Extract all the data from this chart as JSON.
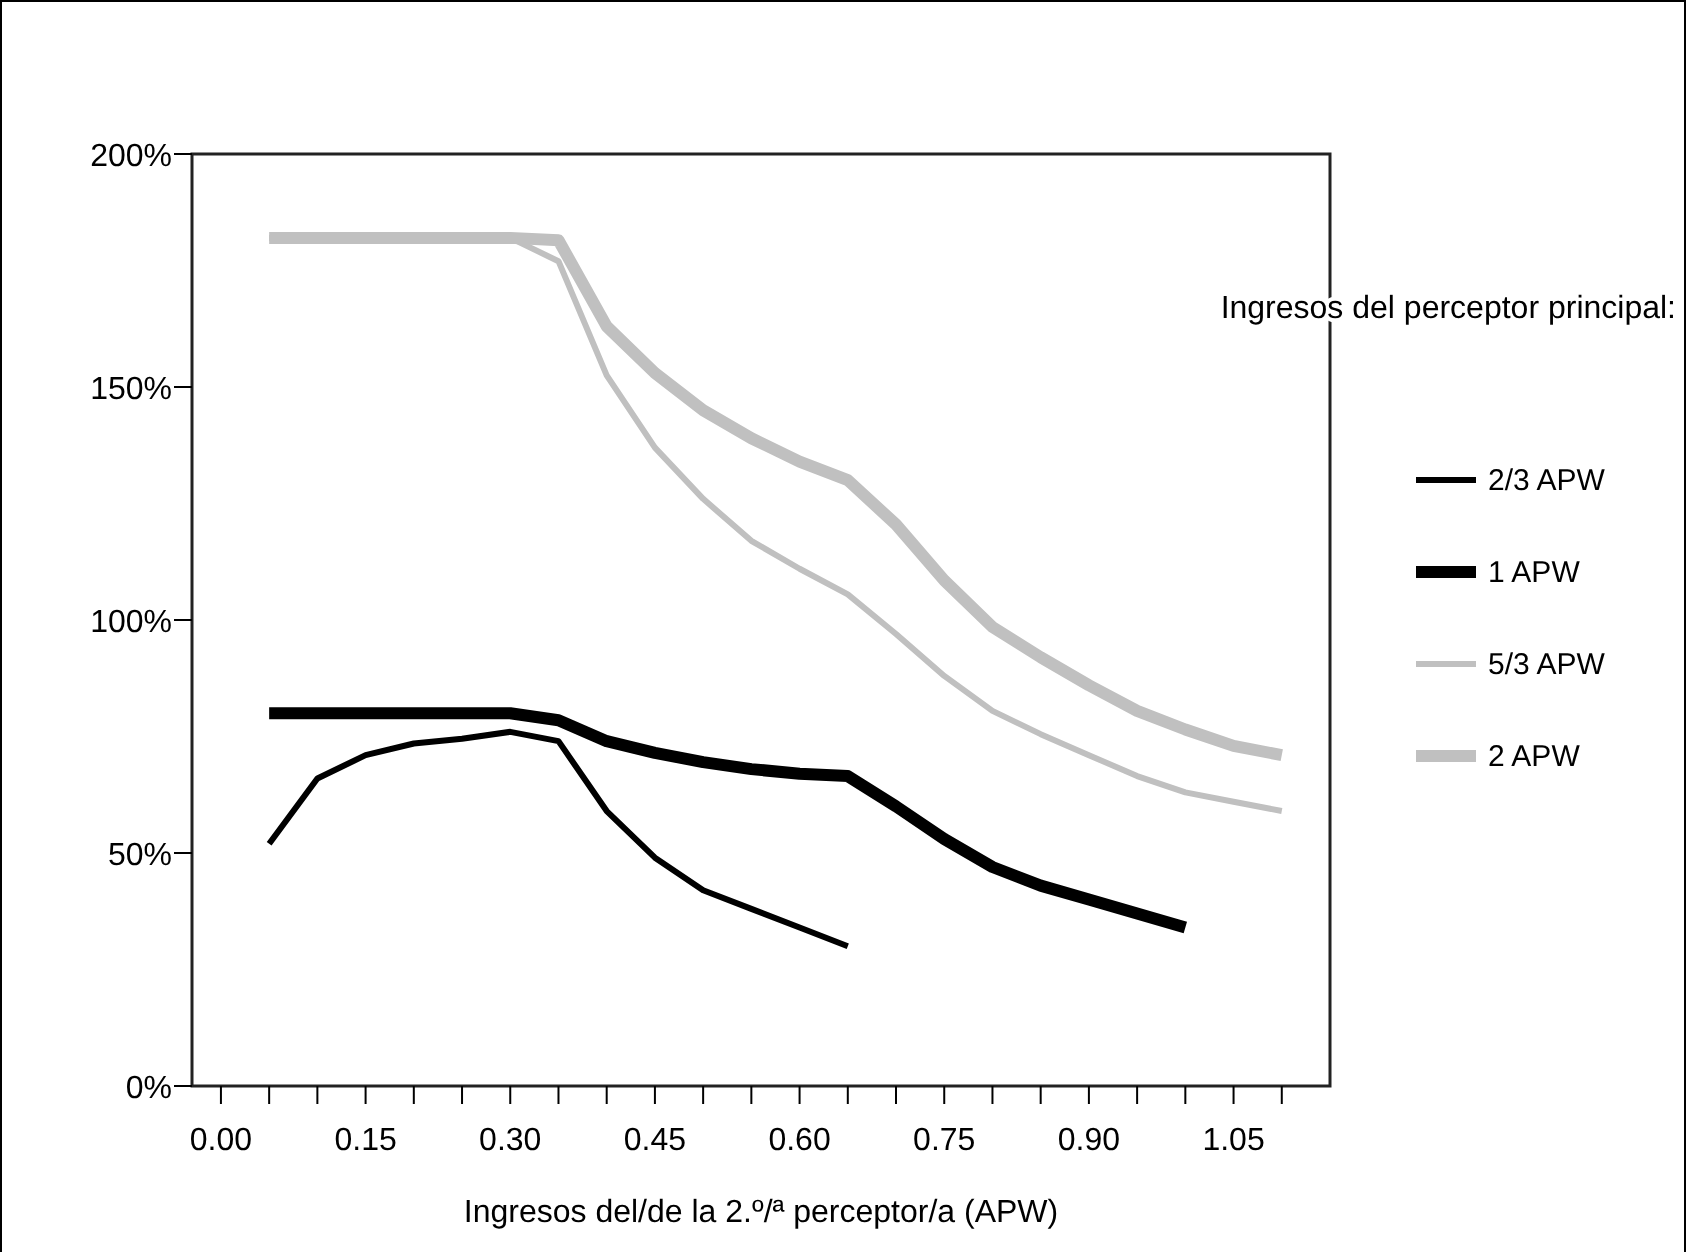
{
  "chart_data": {
    "type": "line",
    "xlabel": "Ingresos del/de la 2.º/ª perceptor/a (APW)",
    "legend_title": "Ingresos del perceptor principal:",
    "x": [
      0.05,
      0.1,
      0.15,
      0.2,
      0.25,
      0.3,
      0.35,
      0.4,
      0.45,
      0.5,
      0.55,
      0.6,
      0.65,
      0.7,
      0.75,
      0.8,
      0.85,
      0.9,
      0.95,
      1.0,
      1.05,
      1.1
    ],
    "series": [
      {
        "name": "2/3 APW",
        "color": "#000000",
        "values": [
          52,
          66,
          71,
          73.5,
          74.5,
          76,
          74,
          59,
          49,
          42,
          38,
          34,
          30,
          null,
          null,
          null,
          null,
          null,
          null,
          null,
          null,
          null
        ]
      },
      {
        "name": "1 APW",
        "color": "#000000",
        "values": [
          80,
          80,
          80,
          80,
          80,
          80,
          78.5,
          74,
          71.5,
          69.5,
          68,
          67,
          66.5,
          60,
          53,
          47,
          43,
          40,
          37,
          34,
          null,
          null
        ]
      },
      {
        "name": "5/3 APW",
        "color": "#c0c0c0",
        "values": [
          182,
          182,
          182,
          182,
          182,
          182,
          177,
          152.5,
          137,
          126,
          117,
          111,
          105.5,
          97,
          88,
          80.5,
          75.5,
          71,
          66.5,
          63,
          61,
          59
        ]
      },
      {
        "name": "2 APW",
        "color": "#c0c0c0",
        "values": [
          182,
          182,
          182,
          182,
          182,
          182,
          181.5,
          163,
          153,
          145,
          139,
          134,
          130,
          120.5,
          108.5,
          98.5,
          92,
          86,
          80.5,
          76.5,
          73,
          71
        ]
      }
    ],
    "xlim": [
      -0.03,
      1.15
    ],
    "xticks": [
      {
        "value": 0,
        "label": "0.00"
      },
      {
        "value": 0.05,
        "label": null
      },
      {
        "value": 0.1,
        "label": null
      },
      {
        "value": 0.15,
        "label": "0.15"
      },
      {
        "value": 0.2,
        "label": null
      },
      {
        "value": 0.25,
        "label": null
      },
      {
        "value": 0.3,
        "label": "0.30"
      },
      {
        "value": 0.35,
        "label": null
      },
      {
        "value": 0.4,
        "label": null
      },
      {
        "value": 0.45,
        "label": "0.45"
      },
      {
        "value": 0.5,
        "label": null
      },
      {
        "value": 0.55,
        "label": null
      },
      {
        "value": 0.6,
        "label": "0.60"
      },
      {
        "value": 0.65,
        "label": null
      },
      {
        "value": 0.7,
        "label": null
      },
      {
        "value": 0.75,
        "label": "0.75"
      },
      {
        "value": 0.8,
        "label": null
      },
      {
        "value": 0.85,
        "label": null
      },
      {
        "value": 0.9,
        "label": "0.90"
      },
      {
        "value": 0.95,
        "label": null
      },
      {
        "value": 1.0,
        "label": null
      },
      {
        "value": 1.05,
        "label": "1.05"
      },
      {
        "value": 1.1,
        "label": null
      }
    ],
    "ylim": [
      0,
      200
    ],
    "yticks": [
      {
        "value": 0,
        "label": "0%"
      },
      {
        "value": 50,
        "label": "50%"
      },
      {
        "value": 100,
        "label": "100%"
      },
      {
        "value": 150,
        "label": "150%"
      },
      {
        "value": 200,
        "label": "200%"
      }
    ],
    "grid": false,
    "legend": "right",
    "marker": "none",
    "line_style": "solid"
  }
}
